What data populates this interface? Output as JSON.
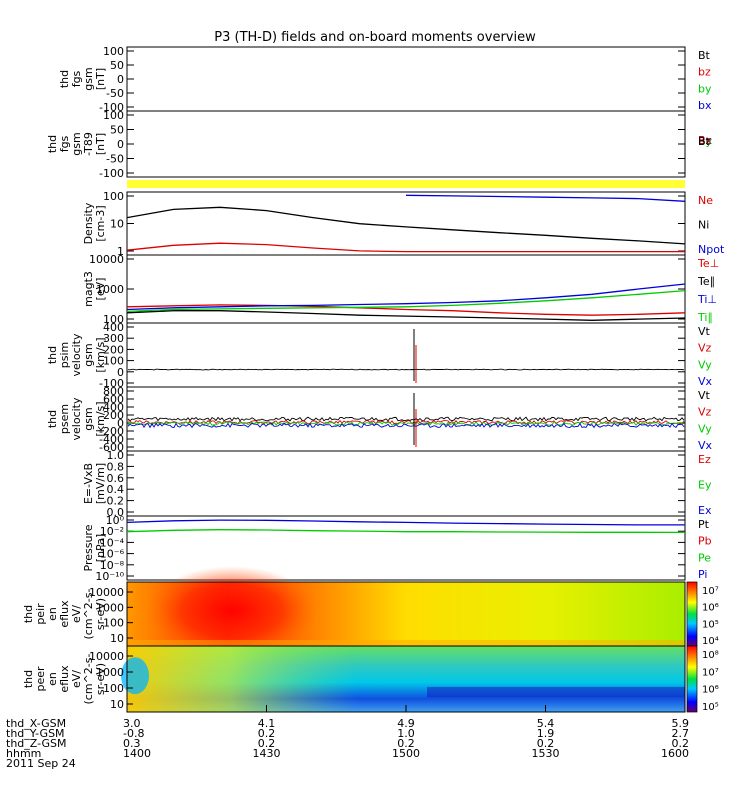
{
  "title": "P3 (TH-D) fields and on-board moments overview",
  "colors": {
    "black": "#000000",
    "red": "#dd0000",
    "green": "#00cc00",
    "blue": "#0000dd",
    "yellow": "#ffff33"
  },
  "chart_data": [
    {
      "type": "line",
      "id": "fgs",
      "ylabel": [
        "thd",
        "fgs",
        "gsm",
        "[nT]"
      ],
      "ylim": [
        -100,
        100
      ],
      "yticks": [
        "100",
        "50",
        "0",
        "-50",
        "-100"
      ],
      "legend": [
        {
          "label": "Bt",
          "color": "#000000"
        },
        {
          "label": "bz",
          "color": "#dd0000"
        },
        {
          "label": "by",
          "color": "#00cc00"
        },
        {
          "label": "bx",
          "color": "#0000dd"
        }
      ],
      "series": []
    },
    {
      "type": "line",
      "id": "fgs-lp",
      "ylabel": [
        "thd",
        "fgs",
        "gsm",
        "-T89",
        "[nT]"
      ],
      "ylim": [
        -100,
        100
      ],
      "yticks": [
        "100",
        "50",
        "0",
        "-50",
        "-100"
      ],
      "legend_overlap": [
        "Bx",
        "By",
        "Bz",
        "Bt"
      ],
      "legend_colors": [
        "#0000dd",
        "#00cc00",
        "#dd0000",
        "#000000"
      ],
      "series": []
    },
    {
      "type": "flag",
      "id": "mode-bar",
      "color": "#ffff33"
    },
    {
      "type": "line",
      "id": "density",
      "scale": "log",
      "ylabel": [
        "Density",
        "[cm-3]"
      ],
      "ylim": [
        0.5,
        250
      ],
      "yticks": [
        "100",
        "10",
        "1"
      ],
      "legend": [
        {
          "label": "Ne",
          "color": "#dd0000"
        },
        {
          "label": "Ni",
          "color": "#000000"
        },
        {
          "label": "Npot",
          "color": "#0000dd"
        }
      ],
      "x": [
        1400,
        1410,
        1420,
        1430,
        1440,
        1450,
        1500,
        1510,
        1520,
        1530,
        1540,
        1550,
        1600
      ],
      "series": [
        {
          "name": "Ni",
          "color": "#000000",
          "values": [
            20,
            45,
            55,
            40,
            20,
            11,
            8,
            6,
            4.5,
            3.5,
            2.6,
            2.0,
            1.5
          ]
        },
        {
          "name": "Ne",
          "color": "#dd0000",
          "values": [
            0.8,
            1.3,
            1.6,
            1.4,
            1.0,
            0.75,
            0.7,
            0.7,
            0.7,
            0.7,
            0.7,
            0.7,
            0.7
          ]
        },
        {
          "name": "Npot",
          "color": "#0000dd",
          "values": [
            null,
            null,
            null,
            null,
            null,
            null,
            180,
            170,
            160,
            150,
            140,
            130,
            100
          ]
        }
      ]
    },
    {
      "type": "line",
      "id": "temperature",
      "scale": "log",
      "ylabel": [
        "magt3",
        "[eV]"
      ],
      "ylim": [
        100,
        10000
      ],
      "yticks": [
        "10000",
        "1000",
        "100"
      ],
      "legend": [
        {
          "label": "Te⊥",
          "color": "#dd0000"
        },
        {
          "label": "Te∥",
          "color": "#000000"
        },
        {
          "label": "Ti⊥",
          "color": "#0000dd"
        },
        {
          "label": "Ti∥",
          "color": "#00cc00"
        }
      ],
      "x": [
        1400,
        1410,
        1420,
        1430,
        1440,
        1450,
        1500,
        1510,
        1520,
        1530,
        1540,
        1550,
        1600
      ],
      "series": [
        {
          "name": "Te⊥",
          "color": "#dd0000",
          "values": [
            300,
            320,
            340,
            330,
            310,
            280,
            250,
            230,
            200,
            180,
            170,
            180,
            200
          ]
        },
        {
          "name": "Te∥",
          "color": "#000000",
          "values": [
            200,
            230,
            230,
            210,
            190,
            170,
            160,
            150,
            140,
            130,
            120,
            130,
            140
          ]
        },
        {
          "name": "Ti⊥",
          "color": "#0000dd",
          "values": [
            250,
            280,
            300,
            320,
            330,
            350,
            370,
            400,
            450,
            550,
            700,
            1000,
            1400
          ]
        },
        {
          "name": "Ti∥",
          "color": "#00cc00",
          "values": [
            220,
            250,
            260,
            270,
            280,
            290,
            300,
            330,
            380,
            450,
            550,
            700,
            900
          ]
        }
      ]
    },
    {
      "type": "line",
      "id": "psim-velocity",
      "ylabel": [
        "thd",
        "psim",
        "velocity",
        "gsm",
        "[km/s]"
      ],
      "ylim": [
        -150,
        400
      ],
      "yticks": [
        "400",
        "300",
        "200",
        "100",
        "0",
        "-100"
      ],
      "legend": [
        {
          "label": "Vt",
          "color": "#000000"
        },
        {
          "label": "Vz",
          "color": "#dd0000"
        },
        {
          "label": "Vy",
          "color": "#00cc00"
        },
        {
          "label": "Vx",
          "color": "#0000dd"
        }
      ],
      "series": [
        {
          "name": "Vt",
          "color": "#000000",
          "level": 0,
          "noise": 3
        }
      ],
      "spike_x": 1500
    },
    {
      "type": "line",
      "id": "psem-velocity",
      "ylabel": [
        "thd",
        "psem",
        "velocity",
        "gsm",
        "[km/s]"
      ],
      "ylim": [
        -600,
        800
      ],
      "yticks": [
        "800",
        "600",
        "400",
        "200",
        "0",
        "-200",
        "-400",
        "-600"
      ],
      "legend": [
        {
          "label": "Vt",
          "color": "#000000"
        },
        {
          "label": "Vz",
          "color": "#dd0000"
        },
        {
          "label": "Vy",
          "color": "#00cc00"
        },
        {
          "label": "Vx",
          "color": "#0000dd"
        }
      ],
      "series": [
        {
          "name": "Vt",
          "color": "#000000",
          "level": 100,
          "noise": 40
        },
        {
          "name": "Vz",
          "color": "#dd0000",
          "level": 30,
          "noise": 35
        },
        {
          "name": "Vy",
          "color": "#00cc00",
          "level": 0,
          "noise": 35
        },
        {
          "name": "Vx",
          "color": "#0000dd",
          "level": -40,
          "noise": 45
        }
      ],
      "spike_x": 1500
    },
    {
      "type": "line",
      "id": "efield",
      "ylabel": [
        "E=-VxB",
        "[mV/m]"
      ],
      "ylim": [
        0,
        1
      ],
      "yticks": [
        "1.0",
        "0.8",
        "0.6",
        "0.4",
        "0.2",
        "0.0"
      ],
      "legend": [
        {
          "label": "Ez",
          "color": "#dd0000"
        },
        {
          "label": "Ey",
          "color": "#00cc00"
        },
        {
          "label": "Ex",
          "color": "#0000dd"
        }
      ],
      "series": []
    },
    {
      "type": "line",
      "id": "pressure",
      "scale": "log",
      "ylabel": [
        "Pressure",
        "[nPa]"
      ],
      "ylim": [
        1e-10,
        10
      ],
      "yticks": [
        "10⁰",
        "10⁻²",
        "10⁻⁴",
        "10⁻⁶",
        "10⁻⁸",
        "10⁻¹⁰"
      ],
      "legend": [
        {
          "label": "Pt",
          "color": "#000000"
        },
        {
          "label": "Pb",
          "color": "#dd0000"
        },
        {
          "label": "Pe",
          "color": "#00cc00"
        },
        {
          "label": "Pi",
          "color": "#0000dd"
        }
      ],
      "x": [
        1400,
        1410,
        1420,
        1430,
        1440,
        1450,
        1500,
        1510,
        1520,
        1530,
        1540,
        1550,
        1600
      ],
      "series": [
        {
          "name": "Pi",
          "color": "#0000dd",
          "values": [
            0.8,
            1.5,
            2.0,
            1.8,
            1.4,
            1.0,
            0.8,
            0.6,
            0.5,
            0.4,
            0.35,
            0.3,
            0.3
          ]
        },
        {
          "name": "Pe",
          "color": "#00cc00",
          "values": [
            0.02,
            0.035,
            0.045,
            0.04,
            0.03,
            0.025,
            0.02,
            0.02,
            0.018,
            0.017,
            0.016,
            0.016,
            0.015
          ]
        }
      ]
    },
    {
      "type": "heatmap",
      "id": "peir",
      "ylabel": [
        "thd",
        "peir",
        "en",
        "eflux",
        "eV/",
        "(cm^2-s-",
        "sr-eV)"
      ],
      "yticks": [
        "10000",
        "1000",
        "100",
        "10"
      ],
      "colorbar_ticks": [
        "10⁷",
        "10⁶",
        "10⁵",
        "10⁴"
      ]
    },
    {
      "type": "heatmap",
      "id": "peer",
      "ylabel": [
        "thd",
        "peer",
        "en",
        "eflux",
        "eV/",
        "(cm^2-s-",
        "sr-eV)"
      ],
      "yticks": [
        "10000",
        "1000",
        "100",
        "10"
      ],
      "colorbar_ticks": [
        "10⁸",
        "10⁷",
        "10⁶",
        "10⁵"
      ]
    }
  ],
  "xaxis": {
    "rows": [
      {
        "label": "thd_X-GSM",
        "values": [
          "3.0",
          "4.1",
          "4.9",
          "5.4",
          "5.9"
        ]
      },
      {
        "label": "thd_Y-GSM",
        "values": [
          "-0.8",
          "0.2",
          "1.0",
          "1.9",
          "2.7"
        ]
      },
      {
        "label": "thd_Z-GSM",
        "values": [
          "0.3",
          "0.2",
          "0.2",
          "0.2",
          "0.2"
        ]
      },
      {
        "label": "hhmm",
        "values": [
          "1400",
          "1430",
          "1500",
          "1530",
          "1600"
        ]
      }
    ],
    "date": "2011 Sep 24",
    "tick_times": [
      1400,
      1430,
      1500,
      1530,
      1600
    ]
  }
}
